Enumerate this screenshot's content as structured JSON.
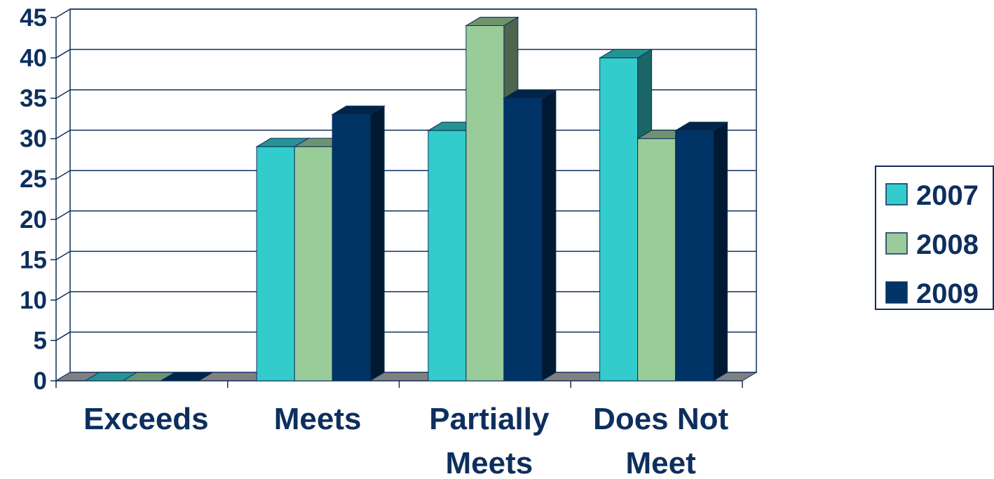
{
  "chart_data": {
    "type": "bar",
    "title": "",
    "xlabel": "",
    "ylabel": "",
    "ylim": [
      0,
      45
    ],
    "yticks": [
      0,
      5,
      10,
      15,
      20,
      25,
      30,
      35,
      40,
      45
    ],
    "grid": true,
    "legend_position": "right",
    "categories": [
      [
        "Exceeds"
      ],
      [
        "Meets"
      ],
      [
        "Partially",
        "Meets"
      ],
      [
        "Does Not",
        "Meet"
      ]
    ],
    "series": [
      {
        "name": "2007",
        "color": "#33cccc",
        "values": [
          0,
          29,
          31,
          40
        ]
      },
      {
        "name": "2008",
        "color": "#99cc99",
        "values": [
          0,
          29,
          44,
          30
        ]
      },
      {
        "name": "2009",
        "color": "#003366",
        "values": [
          0,
          33,
          35,
          31
        ]
      }
    ]
  }
}
